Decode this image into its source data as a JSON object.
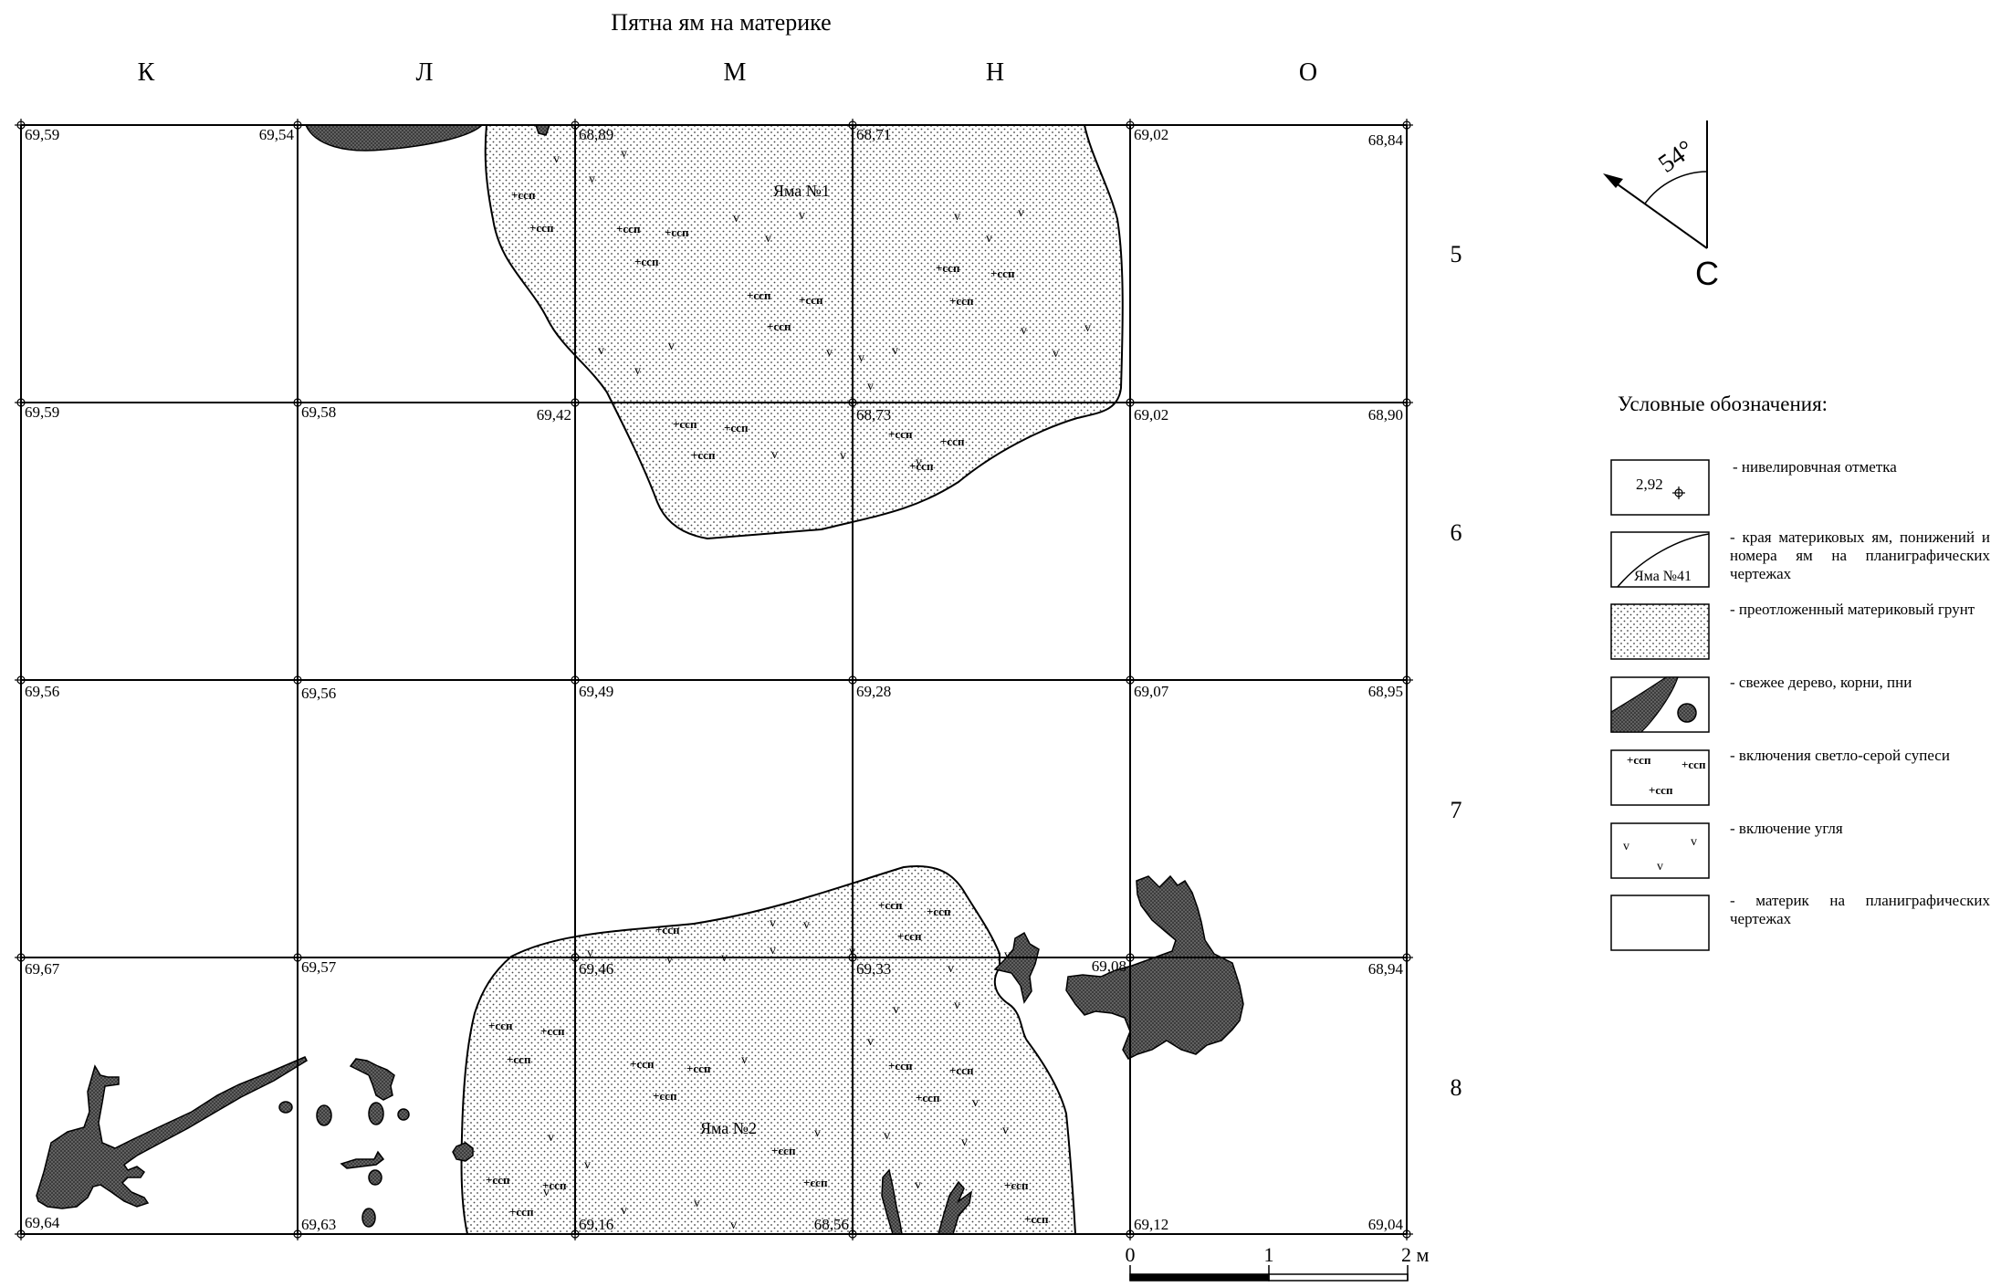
{
  "title": "Пятна ям на материке",
  "columns": [
    "К",
    "Л",
    "М",
    "Н",
    "О"
  ],
  "rows": [
    "5",
    "6",
    "7",
    "8"
  ],
  "elevations": {
    "row0": [
      "69,59",
      "69,54",
      "68,89",
      "68,71",
      "69,02",
      "68,84"
    ],
    "row1": [
      "69,59",
      "69,58",
      "69,42",
      "68,73",
      "69,02",
      "68,90"
    ],
    "row2": [
      "69,56",
      "69,56",
      "69,49",
      "69,28",
      "69,07",
      "68,95"
    ],
    "row3": [
      "69,67",
      "69,57",
      "69,46",
      "69,33",
      "69,08",
      "68,94"
    ],
    "row4": [
      "69,64",
      "69,63",
      "69,16",
      "68,56",
      "69,12",
      "69,04"
    ]
  },
  "pits": {
    "pit1": "Яма №1",
    "pit2": "Яма №2"
  },
  "marks": {
    "ssp": "ссп",
    "coal": "v"
  },
  "orientation": {
    "angle": "54°",
    "north": "С"
  },
  "scale": {
    "zero": "0",
    "one": "1",
    "two": "2 м"
  },
  "legend": {
    "title": "Условные обозначения:",
    "sample_elev": "2,92",
    "sample_pit": "Яма №41",
    "items": [
      "- нивелировчная отметка",
      "- края материковых ям, понижений и номера ям на планиграфических чертежах",
      "- преотложенный материковый грунт",
      "- свежее дерево, корни, пни",
      "- включения светло-серой супеси",
      "- включение угля",
      "- материк на планиграфических чертежах"
    ]
  }
}
